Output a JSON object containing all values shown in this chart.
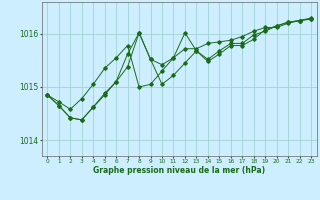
{
  "xlabel": "Graphe pression niveau de la mer (hPa)",
  "background_color": "#cceeff",
  "line_color": "#1a6b1a",
  "grid_color": "#99cccc",
  "x_ticks": [
    0,
    1,
    2,
    3,
    4,
    5,
    6,
    7,
    8,
    9,
    10,
    11,
    12,
    13,
    14,
    15,
    16,
    17,
    18,
    19,
    20,
    21,
    22,
    23
  ],
  "ylim": [
    1013.7,
    1016.6
  ],
  "yticks": [
    1014,
    1015,
    1016
  ],
  "series": [
    [
      1014.85,
      1014.72,
      1014.58,
      1014.78,
      1015.05,
      1015.35,
      1015.55,
      1015.78,
      1015.0,
      1015.05,
      1015.3,
      1015.55,
      1015.72,
      1015.72,
      1015.82,
      1015.85,
      1015.88,
      1015.95,
      1016.05,
      1016.12,
      1016.12,
      1016.2,
      1016.25,
      1016.3
    ],
    [
      1014.85,
      1014.65,
      1014.42,
      1014.38,
      1014.62,
      1014.88,
      1015.1,
      1015.38,
      1016.02,
      1015.52,
      1015.42,
      1015.55,
      1016.02,
      1015.68,
      1015.48,
      1015.62,
      1015.78,
      1015.78,
      1015.9,
      1016.08,
      1016.15,
      1016.22,
      1016.25,
      1016.28
    ],
    [
      1014.85,
      1014.65,
      1014.42,
      1014.38,
      1014.62,
      1014.85,
      1015.1,
      1015.62,
      1016.02,
      1015.52,
      1015.05,
      1015.22,
      1015.45,
      1015.68,
      1015.52,
      1015.68,
      1015.82,
      1015.82,
      1015.98,
      1016.05,
      1016.15,
      1016.22,
      1016.25,
      1016.28
    ]
  ]
}
